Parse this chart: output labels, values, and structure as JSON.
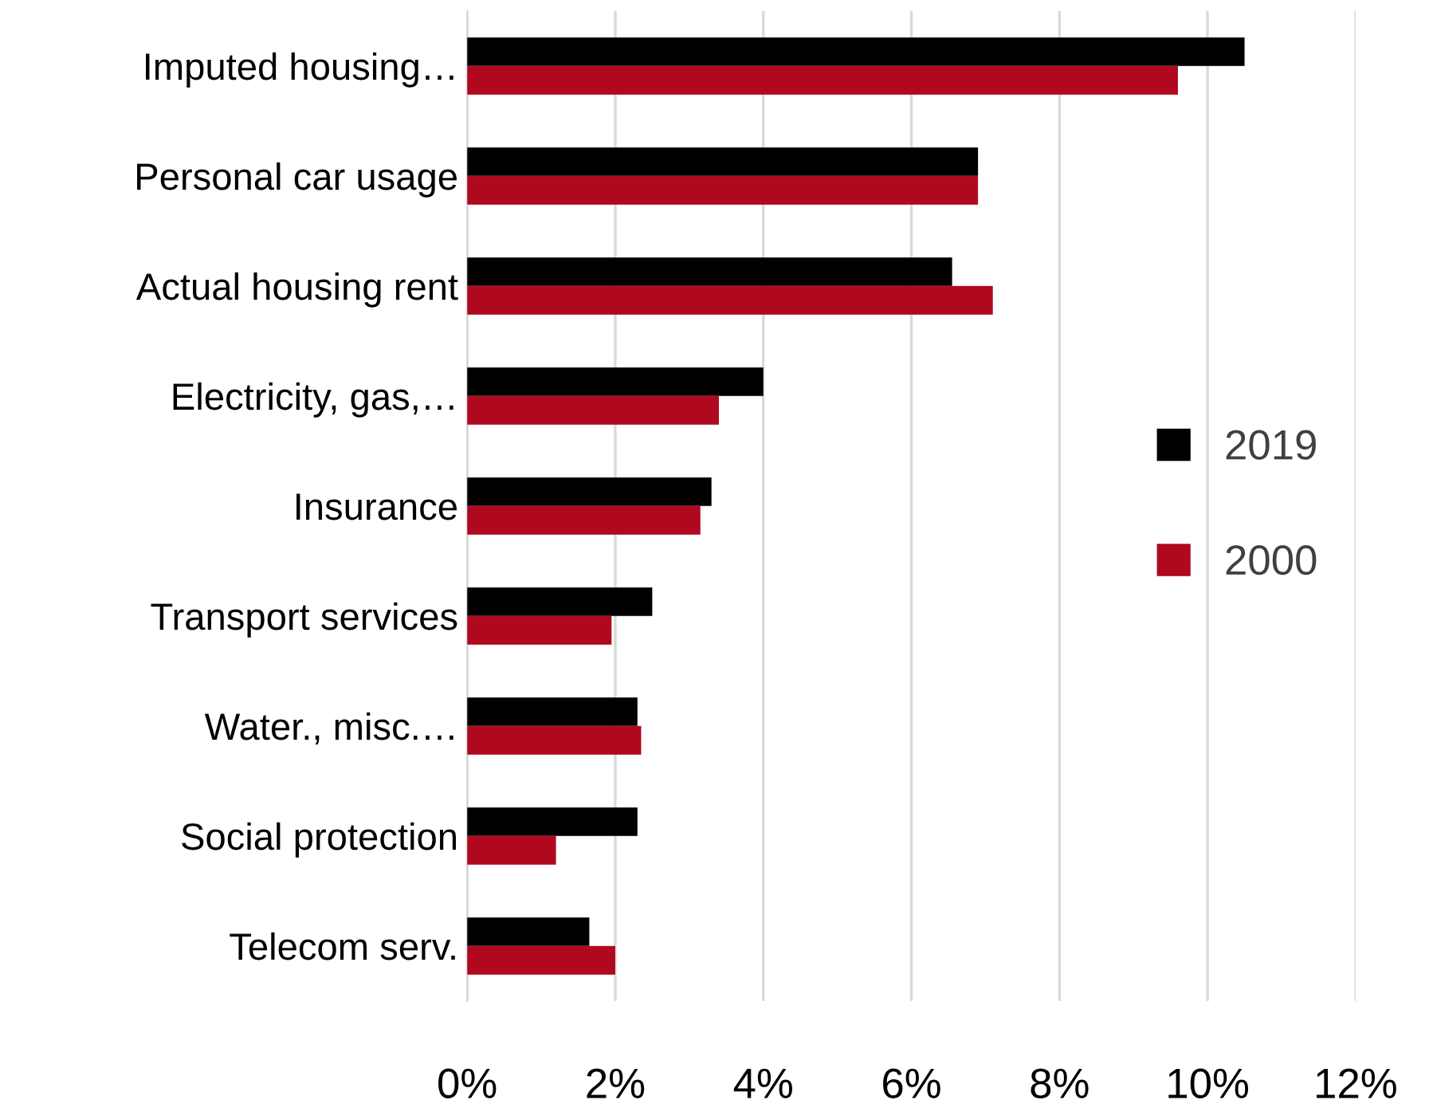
{
  "chart_data": {
    "type": "bar",
    "orientation": "horizontal",
    "categories": [
      "Imputed housing…",
      "Personal car usage",
      "Actual housing rent",
      "Electricity, gas,…",
      "Insurance",
      "Transport services",
      "Water., misc.…",
      "Social protection",
      "Telecom serv."
    ],
    "series": [
      {
        "name": "2019",
        "color": "#000000",
        "values": [
          10.5,
          6.9,
          6.55,
          4.0,
          3.3,
          2.5,
          2.3,
          2.3,
          1.65
        ]
      },
      {
        "name": "2000",
        "color": "#b0081e",
        "values": [
          9.6,
          6.9,
          7.1,
          3.4,
          3.15,
          1.95,
          2.35,
          1.2,
          2.0
        ]
      }
    ],
    "xlim": [
      0,
      12
    ],
    "xticks": [
      {
        "value": 0,
        "label": "0%"
      },
      {
        "value": 2,
        "label": "2%"
      },
      {
        "value": 4,
        "label": "4%"
      },
      {
        "value": 6,
        "label": "6%"
      },
      {
        "value": 8,
        "label": "8%"
      },
      {
        "value": 10,
        "label": "10%"
      },
      {
        "value": 12,
        "label": "12%"
      }
    ],
    "grid": "x",
    "legend": "right"
  }
}
